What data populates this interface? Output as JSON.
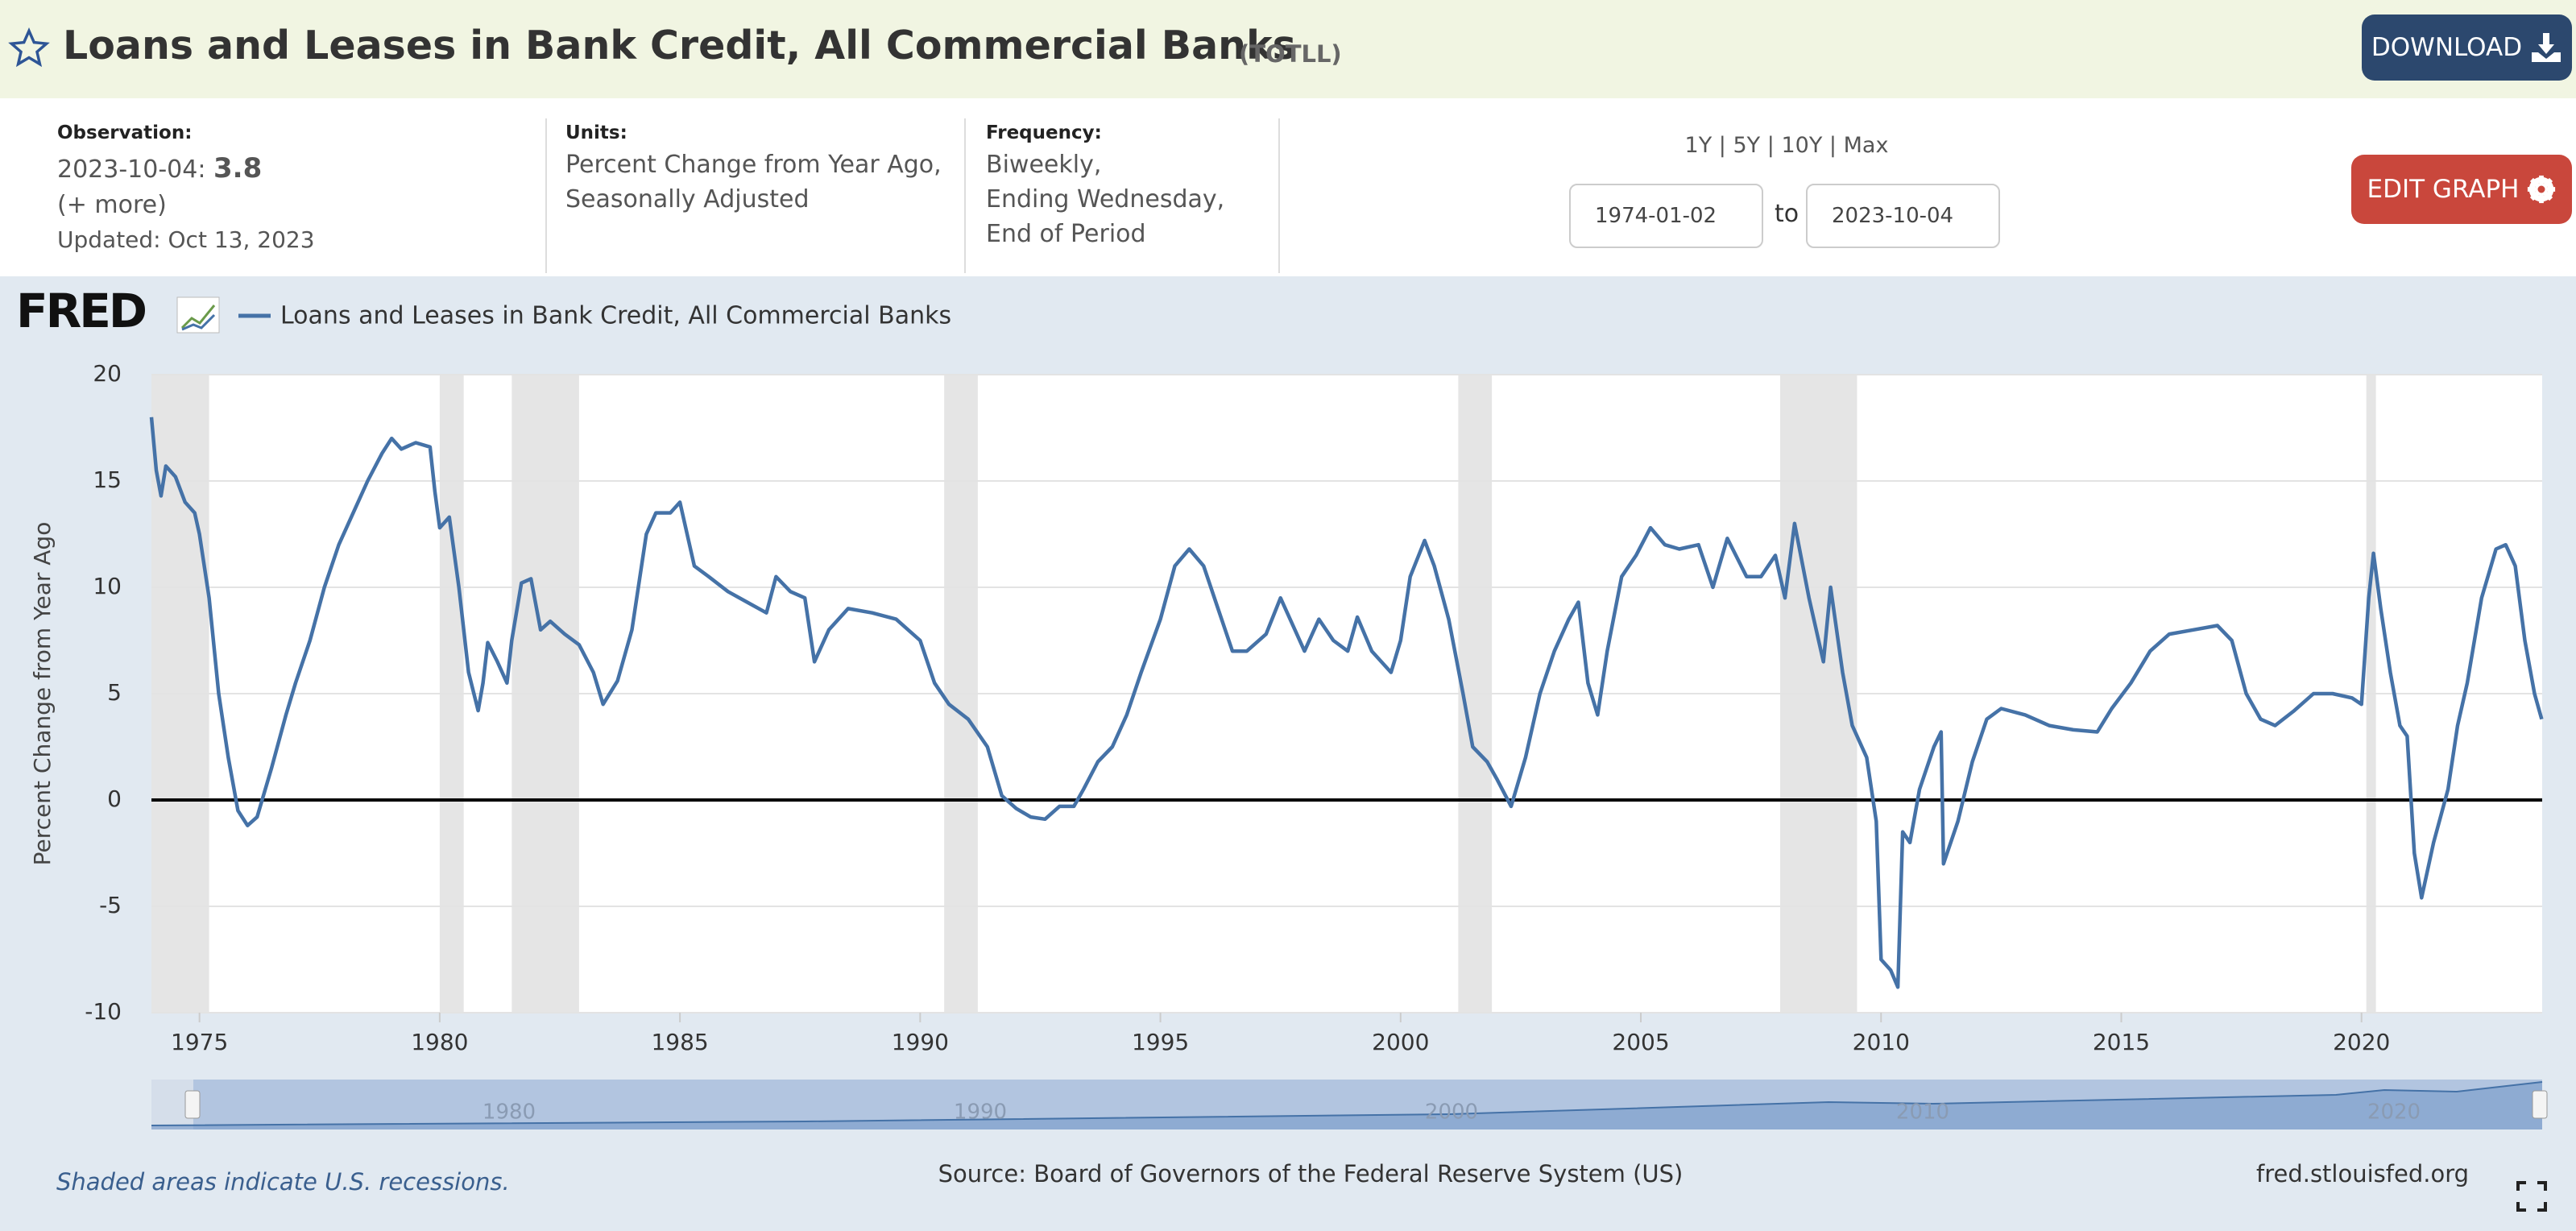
{
  "header": {
    "title": "Loans and Leases in Bank Credit, All Commercial Banks",
    "series_id": "(TOTLL)",
    "download": "DOWNLOAD"
  },
  "observation": {
    "label": "Observation:",
    "date": "2023-10-04:",
    "value": "3.8",
    "more": "(+ more)",
    "updated": "Updated: Oct 13, 2023"
  },
  "units": {
    "label": "Units:",
    "lines": [
      "Percent Change from Year Ago,",
      "Seasonally Adjusted"
    ]
  },
  "frequency": {
    "label": "Frequency:",
    "lines": [
      "Biweekly,",
      "Ending Wednesday,",
      "End of Period"
    ]
  },
  "range": {
    "buttons": [
      "1Y",
      "5Y",
      "10Y",
      "Max"
    ],
    "separator": "|",
    "start": "1974-01-02",
    "to": "to",
    "end": "2023-10-04",
    "edit": "EDIT GRAPH"
  },
  "logo": "FRED",
  "chart_data": {
    "type": "line",
    "ylabel": "Percent Change from Year Ago",
    "xlim": [
      1974.0,
      2023.76
    ],
    "xticks": [
      1975,
      1980,
      1985,
      1990,
      1995,
      2000,
      2005,
      2010,
      2015,
      2020
    ],
    "ylim": [
      -10,
      20
    ],
    "yticks": [
      -10,
      -5,
      0,
      5,
      10,
      15,
      20
    ],
    "grid": true,
    "recessions": [
      [
        1973.9,
        1975.2
      ],
      [
        1980.0,
        1980.5
      ],
      [
        1981.5,
        1982.9
      ],
      [
        1990.5,
        1991.2
      ],
      [
        2001.2,
        2001.9
      ],
      [
        2007.9,
        2009.5
      ],
      [
        2020.1,
        2020.3
      ]
    ],
    "x": [
      1974.0,
      1974.1,
      1974.2,
      1974.3,
      1974.5,
      1974.7,
      1974.9,
      1975.0,
      1975.2,
      1975.4,
      1975.6,
      1975.8,
      1976.0,
      1976.2,
      1976.5,
      1976.8,
      1977.0,
      1977.3,
      1977.6,
      1977.9,
      1978.2,
      1978.5,
      1978.8,
      1979.0,
      1979.2,
      1979.5,
      1979.8,
      1979.9,
      1980.0,
      1980.2,
      1980.4,
      1980.6,
      1980.8,
      1980.9,
      1981.0,
      1981.2,
      1981.4,
      1981.5,
      1981.7,
      1981.9,
      1982.1,
      1982.3,
      1982.6,
      1982.9,
      1983.2,
      1983.4,
      1983.7,
      1984.0,
      1984.3,
      1984.5,
      1984.8,
      1985.0,
      1985.3,
      1985.6,
      1986.0,
      1986.4,
      1986.8,
      1987.0,
      1987.3,
      1987.6,
      1987.8,
      1988.1,
      1988.5,
      1989.0,
      1989.5,
      1990.0,
      1990.3,
      1990.6,
      1991.0,
      1991.4,
      1991.7,
      1992.0,
      1992.3,
      1992.6,
      1992.9,
      1993.2,
      1993.4,
      1993.7,
      1994.0,
      1994.3,
      1994.6,
      1995.0,
      1995.3,
      1995.6,
      1995.9,
      1996.2,
      1996.5,
      1996.8,
      1997.2,
      1997.5,
      1997.8,
      1998.0,
      1998.3,
      1998.6,
      1998.9,
      1999.1,
      1999.4,
      1999.8,
      2000.0,
      2000.2,
      2000.5,
      2000.7,
      2001.0,
      2001.3,
      2001.5,
      2001.8,
      2002.0,
      2002.3,
      2002.6,
      2002.9,
      2003.2,
      2003.5,
      2003.7,
      2003.9,
      2004.1,
      2004.3,
      2004.6,
      2004.9,
      2005.2,
      2005.5,
      2005.8,
      2006.2,
      2006.5,
      2006.8,
      2007.2,
      2007.5,
      2007.8,
      2008.0,
      2008.2,
      2008.5,
      2008.8,
      2008.95,
      2009.2,
      2009.4,
      2009.7,
      2009.9,
      2010.0,
      2010.2,
      2010.35,
      2010.45,
      2010.6,
      2010.8,
      2011.1,
      2011.25,
      2011.3,
      2011.6,
      2011.9,
      2012.2,
      2012.5,
      2013.0,
      2013.5,
      2014.0,
      2014.5,
      2014.8,
      2015.2,
      2015.6,
      2016.0,
      2016.5,
      2017.0,
      2017.3,
      2017.6,
      2017.9,
      2018.2,
      2018.6,
      2019.0,
      2019.4,
      2019.8,
      2020.0,
      2020.15,
      2020.25,
      2020.4,
      2020.6,
      2020.8,
      2020.95,
      2021.1,
      2021.25,
      2021.5,
      2021.8,
      2022.0,
      2022.2,
      2022.5,
      2022.8,
      2023.0,
      2023.2,
      2023.4,
      2023.6,
      2023.75
    ],
    "series": [
      {
        "name": "Loans and Leases in Bank Credit, All Commercial Banks",
        "color": "#4572a7",
        "values": [
          18,
          15.5,
          14.3,
          15.7,
          15.2,
          14.0,
          13.5,
          12.5,
          9.5,
          5,
          2,
          -0.5,
          -1.2,
          -0.8,
          1.5,
          4,
          5.5,
          7.5,
          10,
          12,
          13.5,
          15,
          16.3,
          17,
          16.5,
          16.8,
          16.6,
          14.5,
          12.8,
          13.3,
          10,
          6,
          4.2,
          5.5,
          7.4,
          6.5,
          5.5,
          7.5,
          10.2,
          10.4,
          8,
          8.4,
          7.8,
          7.3,
          6,
          4.5,
          5.6,
          8,
          12.5,
          13.5,
          13.5,
          14,
          11,
          10.5,
          9.8,
          9.3,
          8.8,
          10.5,
          9.8,
          9.5,
          6.5,
          8,
          9,
          8.8,
          8.5,
          7.5,
          5.5,
          4.5,
          3.8,
          2.5,
          0.2,
          -0.4,
          -0.8,
          -0.9,
          -0.3,
          -0.3,
          0.5,
          1.8,
          2.5,
          4,
          6,
          8.5,
          11,
          11.8,
          11,
          9,
          7,
          7,
          7.8,
          9.5,
          8,
          7,
          8.5,
          7.5,
          7,
          8.6,
          7,
          6,
          7.5,
          10.5,
          12.2,
          11,
          8.5,
          5,
          2.5,
          1.8,
          1,
          -0.3,
          2,
          5,
          7,
          8.5,
          9.3,
          5.5,
          4,
          7,
          10.5,
          11.5,
          12.8,
          12,
          11.8,
          12,
          10,
          12.3,
          10.5,
          10.5,
          11.5,
          9.5,
          13,
          9.5,
          6.5,
          10,
          6,
          3.5,
          2,
          -1,
          -7.5,
          -8,
          -8.8,
          -1.5,
          -2,
          0.5,
          2.5,
          3.2,
          -3,
          -1,
          1.8,
          3.8,
          4.3,
          4,
          3.5,
          3.3,
          3.2,
          4.3,
          5.5,
          7,
          7.8,
          8,
          8.2,
          7.5,
          5,
          3.8,
          3.5,
          4.2,
          5,
          5,
          4.8,
          4.5,
          9.5,
          11.6,
          9,
          6,
          3.5,
          3,
          -2.5,
          -4.6,
          -2,
          0.5,
          3.5,
          5.5,
          9.5,
          11.8,
          12,
          11,
          7.5,
          5,
          3.8
        ]
      }
    ]
  },
  "navigator": {
    "labels": [
      "1980",
      "1990",
      "2000",
      "2010",
      "2020"
    ]
  },
  "footer": {
    "note": "Shaded areas indicate U.S. recessions.",
    "source": "Source: Board of Governors of the Federal Reserve System (US)",
    "site": "fred.stlouisfed.org"
  }
}
